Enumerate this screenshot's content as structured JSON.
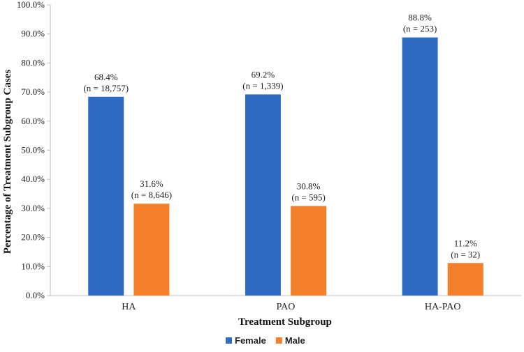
{
  "chart_data": {
    "type": "bar",
    "title": "",
    "xlabel": "Treatment Subgroup",
    "ylabel": "Percentage of Treatment Subgroup Cases",
    "ylim": [
      0,
      100
    ],
    "ytick_step": 10,
    "ytick_labels": [
      "0.0%",
      "10.0%",
      "20.0%",
      "30.0%",
      "40.0%",
      "50.0%",
      "60.0%",
      "70.0%",
      "80.0%",
      "90.0%",
      "100.0%"
    ],
    "grid": false,
    "legend_position": "bottom",
    "categories": [
      "HA",
      "PAO",
      "HA-PAO"
    ],
    "series": [
      {
        "name": "Female",
        "color": "#2E6BC4",
        "values": [
          68.4,
          69.2,
          88.8
        ],
        "labels_pct": [
          "68.4%",
          "69.2%",
          "88.8%"
        ],
        "labels_n": [
          "(n = 18,757)",
          "(n = 1,339)",
          "(n = 253)"
        ]
      },
      {
        "name": "Male",
        "color": "#F47F2A",
        "values": [
          31.6,
          30.8,
          11.2
        ],
        "labels_pct": [
          "31.6%",
          "30.8%",
          "11.2%"
        ],
        "labels_n": [
          "(n = 8,646)",
          "(n = 595)",
          "(n = 32)"
        ]
      }
    ]
  }
}
